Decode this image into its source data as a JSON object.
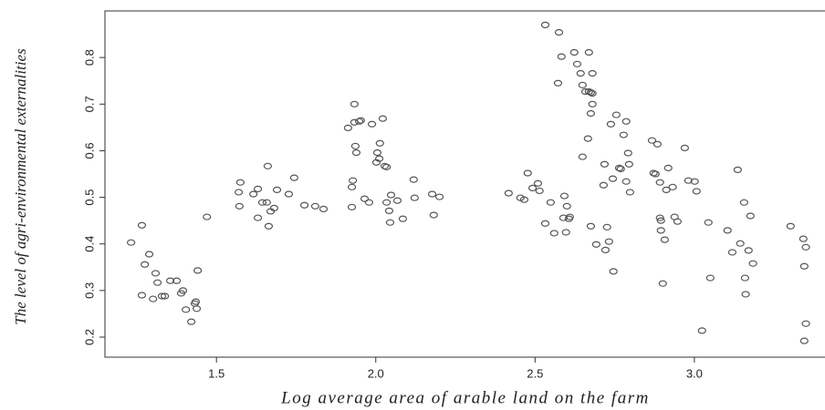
{
  "chart_data": {
    "type": "scatter",
    "xlabel": "Log average area of arable land on the farm",
    "ylabel": "The level of agri-environmental externalities",
    "xlim": [
      1.15,
      3.41
    ],
    "ylim": [
      0.157,
      0.9
    ],
    "xticks": [
      1.5,
      {
        "value": 2,
        "label": "2.0"
      },
      2.5,
      {
        "value": 3,
        "label": "3.0"
      }
    ],
    "yticks": [
      0.2,
      0.3,
      0.4,
      0.5,
      0.6,
      0.7,
      0.8
    ],
    "color": "#555555",
    "x": [
      1.232,
      1.266,
      1.275,
      1.289,
      1.266,
      1.301,
      1.309,
      1.315,
      1.329,
      1.338,
      1.355,
      1.375,
      1.389,
      1.395,
      1.404,
      1.421,
      1.432,
      1.438,
      1.441,
      1.435,
      1.47,
      1.575,
      1.57,
      1.572,
      1.616,
      1.63,
      1.63,
      1.644,
      1.658,
      1.661,
      1.664,
      1.67,
      1.681,
      1.69,
      1.727,
      1.744,
      1.776,
      1.81,
      1.836,
      1.913,
      1.925,
      1.925,
      1.928,
      1.933,
      1.933,
      1.936,
      1.939,
      1.948,
      1.953,
      1.965,
      1.979,
      1.988,
      2.002,
      2.005,
      2.011,
      2.013,
      2.022,
      2.028,
      2.034,
      2.034,
      2.042,
      2.045,
      2.048,
      2.068,
      2.085,
      2.119,
      2.122,
      2.177,
      2.182,
      2.2,
      2.417,
      2.454,
      2.466,
      2.477,
      2.492,
      2.509,
      2.514,
      2.532,
      2.532,
      2.549,
      2.56,
      2.572,
      2.575,
      2.583,
      2.589,
      2.592,
      2.597,
      2.6,
      2.606,
      2.609,
      2.623,
      2.632,
      2.643,
      2.649,
      2.649,
      2.658,
      2.666,
      2.669,
      2.669,
      2.675,
      2.68,
      2.675,
      2.68,
      2.68,
      2.675,
      2.692,
      2.715,
      2.718,
      2.721,
      2.726,
      2.732,
      2.738,
      2.744,
      2.746,
      2.755,
      2.764,
      2.769,
      2.778,
      2.786,
      2.786,
      2.792,
      2.795,
      2.798,
      2.867,
      2.872,
      2.878,
      2.884,
      2.892,
      2.892,
      2.895,
      2.895,
      2.901,
      2.907,
      2.912,
      2.918,
      2.932,
      2.938,
      2.947,
      2.97,
      2.981,
      3.001,
      3.007,
      3.024,
      3.044,
      3.05,
      3.104,
      3.119,
      3.136,
      3.144,
      3.156,
      3.159,
      3.161,
      3.17,
      3.176,
      3.184,
      3.302,
      3.342,
      3.345,
      3.35,
      3.35,
      3.345
    ],
    "y": [
      0.403,
      0.44,
      0.356,
      0.378,
      0.29,
      0.282,
      0.337,
      0.317,
      0.288,
      0.288,
      0.321,
      0.321,
      0.294,
      0.3,
      0.259,
      0.233,
      0.272,
      0.261,
      0.343,
      0.276,
      0.458,
      0.532,
      0.511,
      0.481,
      0.507,
      0.518,
      0.456,
      0.489,
      0.489,
      0.567,
      0.438,
      0.47,
      0.477,
      0.516,
      0.507,
      0.542,
      0.483,
      0.481,
      0.475,
      0.649,
      0.522,
      0.479,
      0.536,
      0.7,
      0.661,
      0.61,
      0.596,
      0.663,
      0.665,
      0.497,
      0.489,
      0.657,
      0.575,
      0.596,
      0.583,
      0.616,
      0.669,
      0.567,
      0.565,
      0.489,
      0.471,
      0.446,
      0.505,
      0.493,
      0.454,
      0.538,
      0.499,
      0.507,
      0.462,
      0.501,
      0.509,
      0.499,
      0.495,
      0.552,
      0.52,
      0.53,
      0.514,
      0.87,
      0.444,
      0.489,
      0.423,
      0.745,
      0.854,
      0.802,
      0.456,
      0.503,
      0.425,
      0.481,
      0.454,
      0.458,
      0.811,
      0.786,
      0.766,
      0.587,
      0.741,
      0.727,
      0.626,
      0.811,
      0.727,
      0.725,
      0.723,
      0.438,
      0.766,
      0.7,
      0.68,
      0.399,
      0.526,
      0.571,
      0.387,
      0.436,
      0.405,
      0.657,
      0.54,
      0.341,
      0.677,
      0.563,
      0.561,
      0.634,
      0.663,
      0.534,
      0.595,
      0.571,
      0.511,
      0.622,
      0.552,
      0.55,
      0.614,
      0.532,
      0.456,
      0.429,
      0.45,
      0.315,
      0.409,
      0.516,
      0.563,
      0.522,
      0.458,
      0.448,
      0.606,
      0.536,
      0.534,
      0.513,
      0.214,
      0.446,
      0.327,
      0.429,
      0.382,
      0.559,
      0.401,
      0.489,
      0.327,
      0.292,
      0.386,
      0.46,
      0.358,
      0.438,
      0.411,
      0.352,
      0.393,
      0.229,
      0.192
    ]
  }
}
